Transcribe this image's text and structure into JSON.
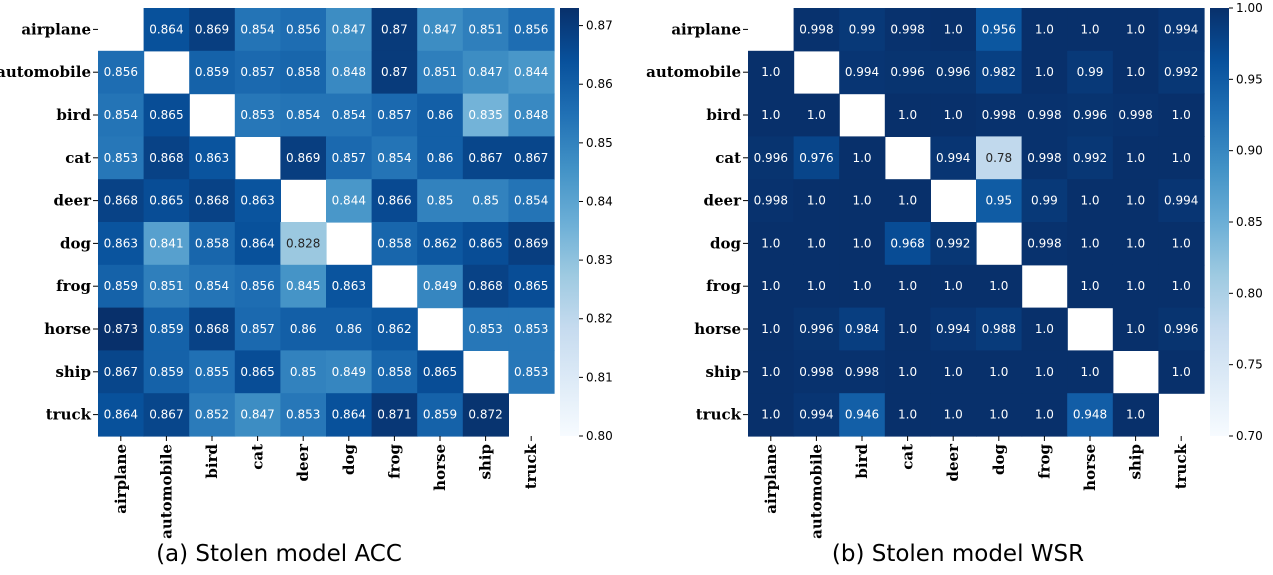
{
  "chart_data": [
    {
      "type": "heatmap",
      "caption": "(a) Stolen model ACC",
      "row_labels": [
        "airplane",
        "automobile",
        "bird",
        "cat",
        "deer",
        "dog",
        "frog",
        "horse",
        "ship",
        "truck"
      ],
      "col_labels": [
        "airplane",
        "automobile",
        "bird",
        "cat",
        "deer",
        "dog",
        "frog",
        "horse",
        "ship",
        "truck"
      ],
      "values": [
        [
          null,
          "0.864",
          "0.869",
          "0.854",
          "0.856",
          "0.847",
          "0.87",
          "0.847",
          "0.851",
          "0.856"
        ],
        [
          "0.856",
          null,
          "0.859",
          "0.857",
          "0.858",
          "0.848",
          "0.87",
          "0.851",
          "0.847",
          "0.844"
        ],
        [
          "0.854",
          "0.865",
          null,
          "0.853",
          "0.854",
          "0.854",
          "0.857",
          "0.86",
          "0.835",
          "0.848"
        ],
        [
          "0.853",
          "0.868",
          "0.863",
          null,
          "0.869",
          "0.857",
          "0.854",
          "0.86",
          "0.867",
          "0.867"
        ],
        [
          "0.868",
          "0.865",
          "0.868",
          "0.863",
          null,
          "0.844",
          "0.866",
          "0.85",
          "0.85",
          "0.854"
        ],
        [
          "0.863",
          "0.841",
          "0.858",
          "0.864",
          "0.828",
          null,
          "0.858",
          "0.862",
          "0.865",
          "0.869"
        ],
        [
          "0.859",
          "0.851",
          "0.854",
          "0.856",
          "0.845",
          "0.863",
          null,
          "0.849",
          "0.868",
          "0.865"
        ],
        [
          "0.873",
          "0.859",
          "0.868",
          "0.857",
          "0.86",
          "0.86",
          "0.862",
          null,
          "0.853",
          "0.853"
        ],
        [
          "0.867",
          "0.859",
          "0.855",
          "0.865",
          "0.85",
          "0.849",
          "0.858",
          "0.865",
          null,
          "0.853"
        ],
        [
          "0.864",
          "0.867",
          "0.852",
          "0.847",
          "0.853",
          "0.864",
          "0.871",
          "0.859",
          "0.872",
          null
        ]
      ],
      "colorbar": {
        "min": 0.8,
        "max": 0.873,
        "ticks": [
          "0.80",
          "0.81",
          "0.82",
          "0.83",
          "0.84",
          "0.85",
          "0.86",
          "0.87"
        ]
      },
      "colormap": "Blues"
    },
    {
      "type": "heatmap",
      "caption": "(b) Stolen model WSR",
      "row_labels": [
        "airplane",
        "automobile",
        "bird",
        "cat",
        "deer",
        "dog",
        "frog",
        "horse",
        "ship",
        "truck"
      ],
      "col_labels": [
        "airplane",
        "automobile",
        "bird",
        "cat",
        "deer",
        "dog",
        "frog",
        "horse",
        "ship",
        "truck"
      ],
      "values": [
        [
          null,
          "0.998",
          "0.99",
          "0.998",
          "1.0",
          "0.956",
          "1.0",
          "1.0",
          "1.0",
          "0.994"
        ],
        [
          "1.0",
          null,
          "0.994",
          "0.996",
          "0.996",
          "0.982",
          "1.0",
          "0.99",
          "1.0",
          "0.992"
        ],
        [
          "1.0",
          "1.0",
          null,
          "1.0",
          "1.0",
          "0.998",
          "0.998",
          "0.996",
          "0.998",
          "1.0"
        ],
        [
          "0.996",
          "0.976",
          "1.0",
          null,
          "0.994",
          "0.78",
          "0.998",
          "0.992",
          "1.0",
          "1.0"
        ],
        [
          "0.998",
          "1.0",
          "1.0",
          "1.0",
          null,
          "0.95",
          "0.99",
          "1.0",
          "1.0",
          "0.994"
        ],
        [
          "1.0",
          "1.0",
          "1.0",
          "0.968",
          "0.992",
          null,
          "0.998",
          "1.0",
          "1.0",
          "1.0"
        ],
        [
          "1.0",
          "1.0",
          "1.0",
          "1.0",
          "1.0",
          "1.0",
          null,
          "1.0",
          "1.0",
          "1.0"
        ],
        [
          "1.0",
          "0.996",
          "0.984",
          "1.0",
          "0.994",
          "0.988",
          "1.0",
          null,
          "1.0",
          "0.996"
        ],
        [
          "1.0",
          "0.998",
          "0.998",
          "1.0",
          "1.0",
          "1.0",
          "1.0",
          "1.0",
          null,
          "1.0"
        ],
        [
          "1.0",
          "0.994",
          "0.946",
          "1.0",
          "1.0",
          "1.0",
          "1.0",
          "0.948",
          "1.0",
          null
        ]
      ],
      "colorbar": {
        "min": 0.7,
        "max": 1.0,
        "ticks": [
          "0.70",
          "0.75",
          "0.80",
          "0.85",
          "0.90",
          "0.95",
          "1.00"
        ]
      },
      "colormap": "Blues"
    }
  ]
}
